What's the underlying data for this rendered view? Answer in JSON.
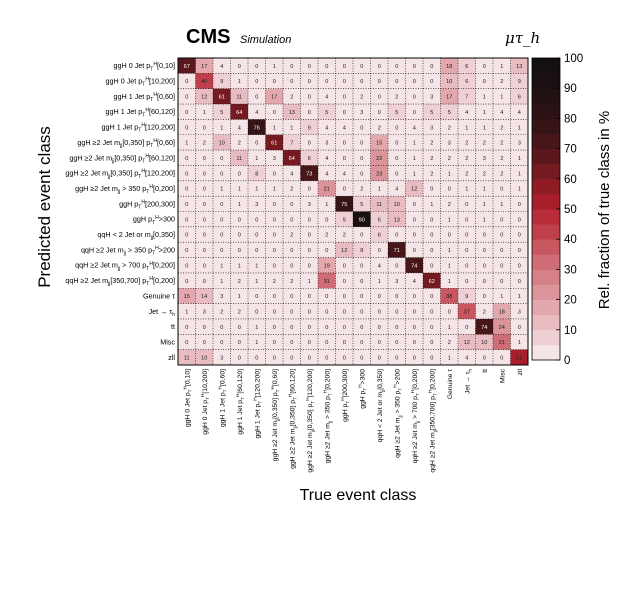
{
  "chart_data": {
    "type": "heatmap",
    "header": {
      "experiment": "CMS",
      "label": "Simulation",
      "channel": "μτ_h"
    },
    "xlabel": "True event class",
    "ylabel": "Predicted event class",
    "colorbar": {
      "label": "Rel. fraction of true class in %",
      "ticks": [
        "0",
        "10",
        "20",
        "30",
        "40",
        "50",
        "60",
        "70",
        "80",
        "90",
        "100"
      ],
      "range": [
        0,
        100
      ]
    },
    "categories": [
      "ggH 0 Jet p_T^H[0,10]",
      "ggH 0 Jet p_T^H[10,200]",
      "ggH 1 Jet p_T^H[0,60]",
      "ggH 1 Jet p_T^H[60,120]",
      "ggH 1 Jet p_T^H[120,200]",
      "ggH ≥2 Jet m_jj[0,350] p_T^H[0,60]",
      "ggH ≥2 Jet m_jj[0,350] p_T^H[60,120]",
      "ggH ≥2 Jet m_jj[0,350] p_T^H[120,200]",
      "ggH ≥2 Jet m_jj > 350 p_T^H[0,200]",
      "ggH p_T^H[200,300]",
      "ggH p_T^H>300",
      "qqH < 2 Jet or m_jj[0,350]",
      "qqH ≥2 Jet m_jj > 350 p_T^H>200",
      "qqH ≥2 Jet m_jj > 700 p_T^H[0,200]",
      "qqH ≥2 Jet m_jj[350,700] p_T^H[0,200]",
      "Genuine τ",
      "Jet → τ_h",
      "tt",
      "Misc",
      "zll"
    ],
    "x_tick_labels": [
      "ggH 0 Jet p_T^H[0,10]",
      "ggH 0 Jet p_T^H[10,200]",
      "ggH 1 Jet p_T^H[0,60]",
      "ggH 1 Jet p_T^H[60,120]",
      "ggH 1 Jet p_T^H[120,200]",
      "ggH ≥2 Jet m_jj[0,350] p_T^H[0,60]",
      "ggH ≥2 Jet m_jj[0,350] p_T^H[60,120]",
      "ggH ≥2 Jet m_jj[0,350] p_T^H[120,200]",
      "ggH ≥2 Jet m_jj > 350 p_T^H[0,200]",
      "ggH p_T^H[200,300]",
      "ggH p_T^H>300",
      "qqH < 2 Jet or m_jj[0,350]",
      "qqH ≥2 Jet m_jj > 350 p_T^H>200",
      "qqH ≥2 Jet m_jj > 700 p_T^H[0,200]",
      "qqH ≥2 Jet m_jj[350,700] p_T^H[0,200]",
      "Genuine τ",
      "Jet → τ_h",
      "tt",
      "Misc",
      "zll"
    ],
    "values": [
      [
        67,
        17,
        4,
        0,
        0,
        1,
        0,
        0,
        0,
        0,
        0,
        0,
        0,
        0,
        0,
        18,
        6,
        0,
        1,
        13
      ],
      [
        0,
        40,
        9,
        1,
        0,
        0,
        0,
        0,
        0,
        0,
        0,
        0,
        0,
        0,
        0,
        10,
        6,
        0,
        2,
        9
      ],
      [
        0,
        12,
        61,
        11,
        0,
        17,
        2,
        0,
        4,
        0,
        2,
        0,
        2,
        0,
        3,
        17,
        7,
        1,
        1,
        6
      ],
      [
        0,
        1,
        5,
        64,
        4,
        0,
        13,
        0,
        5,
        0,
        3,
        0,
        5,
        0,
        5,
        5,
        4,
        1,
        4,
        4
      ],
      [
        0,
        0,
        1,
        4,
        76,
        1,
        1,
        9,
        4,
        4,
        0,
        2,
        0,
        4,
        3,
        2,
        1,
        1,
        2,
        1
      ],
      [
        1,
        2,
        10,
        2,
        0,
        61,
        7,
        0,
        3,
        0,
        0,
        15,
        0,
        1,
        2,
        3,
        2,
        2,
        2,
        3
      ],
      [
        0,
        0,
        0,
        11,
        1,
        3,
        64,
        6,
        4,
        0,
        0,
        22,
        0,
        1,
        2,
        2,
        2,
        3,
        2,
        1
      ],
      [
        0,
        0,
        0,
        0,
        8,
        0,
        4,
        73,
        4,
        4,
        0,
        23,
        0,
        1,
        2,
        1,
        2,
        2,
        2,
        1
      ],
      [
        0,
        0,
        1,
        1,
        1,
        1,
        2,
        0,
        21,
        0,
        2,
        1,
        4,
        12,
        0,
        0,
        1,
        1,
        0,
        1
      ],
      [
        0,
        0,
        0,
        1,
        3,
        0,
        0,
        3,
        1,
        75,
        5,
        11,
        10,
        0,
        1,
        2,
        0,
        1,
        1,
        0
      ],
      [
        0,
        0,
        0,
        0,
        0,
        0,
        0,
        0,
        0,
        5,
        90,
        6,
        13,
        0,
        0,
        1,
        0,
        1,
        0,
        0
      ],
      [
        0,
        0,
        0,
        0,
        0,
        0,
        2,
        0,
        2,
        2,
        0,
        6,
        0,
        0,
        0,
        0,
        0,
        0,
        0,
        0
      ],
      [
        0,
        0,
        0,
        0,
        0,
        0,
        0,
        0,
        0,
        12,
        8,
        0,
        71,
        0,
        0,
        1,
        0,
        0,
        0,
        0
      ],
      [
        0,
        0,
        1,
        1,
        1,
        0,
        0,
        0,
        19,
        0,
        0,
        4,
        0,
        74,
        0,
        1,
        0,
        0,
        0,
        0
      ],
      [
        0,
        0,
        1,
        2,
        1,
        2,
        2,
        1,
        31,
        0,
        0,
        1,
        3,
        4,
        62,
        1,
        0,
        0,
        0,
        0
      ],
      [
        15,
        14,
        3,
        1,
        0,
        0,
        0,
        0,
        0,
        0,
        0,
        0,
        0,
        0,
        0,
        38,
        9,
        0,
        1,
        1
      ],
      [
        1,
        3,
        2,
        2,
        0,
        0,
        0,
        0,
        0,
        0,
        0,
        0,
        0,
        0,
        0,
        0,
        37,
        2,
        18,
        3
      ],
      [
        0,
        0,
        0,
        0,
        1,
        0,
        0,
        0,
        0,
        0,
        0,
        0,
        0,
        0,
        0,
        1,
        0,
        74,
        24,
        0
      ],
      [
        0,
        0,
        0,
        0,
        1,
        0,
        0,
        0,
        0,
        0,
        0,
        0,
        0,
        0,
        0,
        2,
        12,
        10,
        31,
        1
      ],
      [
        11,
        10,
        3,
        0,
        0,
        0,
        0,
        0,
        0,
        0,
        0,
        0,
        0,
        0,
        0,
        1,
        4,
        0,
        0,
        51
      ]
    ]
  }
}
